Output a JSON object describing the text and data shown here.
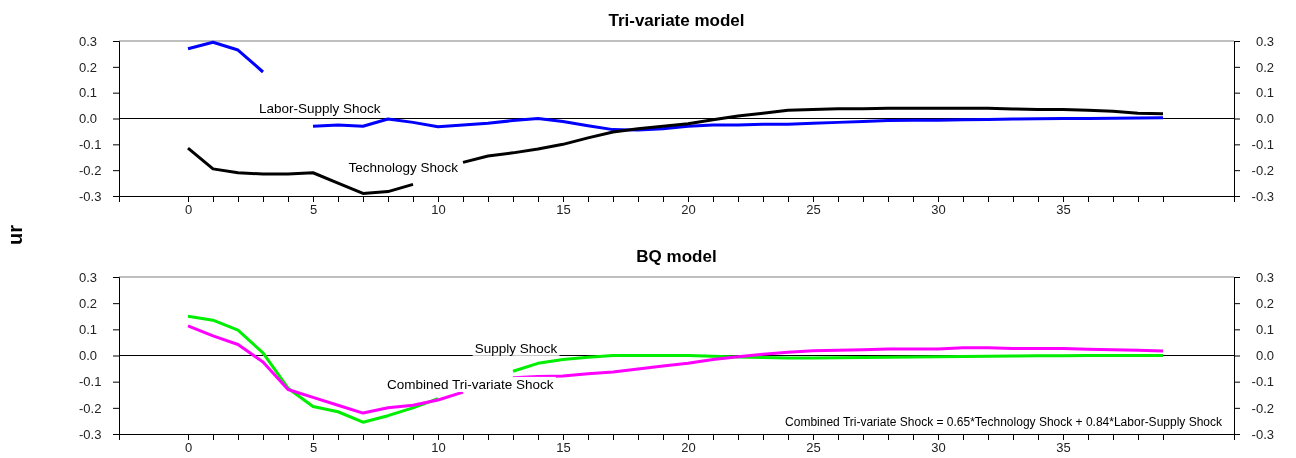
{
  "chart_data": [
    {
      "type": "line",
      "title": "Tri-variate model",
      "ylabel": "ur",
      "x": [
        0,
        1,
        2,
        3,
        4,
        5,
        6,
        7,
        8,
        9,
        10,
        11,
        12,
        13,
        14,
        15,
        16,
        17,
        18,
        19,
        20,
        21,
        22,
        23,
        24,
        25,
        26,
        27,
        28,
        29,
        30,
        31,
        32,
        33,
        34,
        35,
        36,
        37,
        38,
        39
      ],
      "series": [
        {
          "name": "Labor-Supply Shock",
          "color": "#0000ff",
          "values": [
            0.27,
            0.295,
            0.265,
            0.18,
            null,
            -0.03,
            -0.025,
            -0.03,
            -0.002,
            -0.015,
            -0.032,
            -0.025,
            -0.018,
            -0.008,
            0,
            -0.012,
            -0.028,
            -0.043,
            -0.045,
            -0.04,
            -0.03,
            -0.025,
            -0.025,
            -0.022,
            -0.022,
            -0.018,
            -0.015,
            -0.012,
            -0.008,
            -0.007,
            -0.007,
            -0.005,
            -0.004,
            -0.002,
            -0.001,
            0,
            0,
            0.001,
            0.002,
            0.003
          ]
        },
        {
          "name": "Technology Shock",
          "color": "#000000",
          "values": [
            -0.115,
            -0.195,
            -0.21,
            -0.215,
            -0.215,
            -0.21,
            -0.25,
            -0.29,
            -0.283,
            -0.255,
            null,
            -0.17,
            -0.145,
            -0.133,
            -0.118,
            -0.1,
            -0.075,
            -0.052,
            -0.04,
            -0.03,
            -0.02,
            -0.005,
            0.01,
            0.02,
            0.032,
            0.035,
            0.038,
            0.038,
            0.04,
            0.04,
            0.04,
            0.04,
            0.04,
            0.037,
            0.035,
            0.035,
            0.032,
            0.028,
            0.02,
            0.018
          ]
        }
      ],
      "xlim": [
        -2.76,
        41.84
      ],
      "xticks": [
        0,
        {
          "value": 1,
          "label": null
        },
        {
          "value": 2,
          "label": null
        },
        {
          "value": 3,
          "label": null
        },
        {
          "value": 4,
          "label": null
        },
        5,
        {
          "value": 6,
          "label": null
        },
        {
          "value": 7,
          "label": null
        },
        {
          "value": 8,
          "label": null
        },
        {
          "value": 9,
          "label": null
        },
        10,
        {
          "value": 11,
          "label": null
        },
        {
          "value": 12,
          "label": null
        },
        {
          "value": 13,
          "label": null
        },
        {
          "value": 14,
          "label": null
        },
        15,
        {
          "value": 16,
          "label": null
        },
        {
          "value": 17,
          "label": null
        },
        {
          "value": 18,
          "label": null
        },
        {
          "value": 19,
          "label": null
        },
        20,
        {
          "value": 21,
          "label": null
        },
        {
          "value": 22,
          "label": null
        },
        {
          "value": 23,
          "label": null
        },
        {
          "value": 24,
          "label": null
        },
        25,
        {
          "value": 26,
          "label": null
        },
        {
          "value": 27,
          "label": null
        },
        {
          "value": 28,
          "label": null
        },
        {
          "value": 29,
          "label": null
        },
        30,
        {
          "value": 31,
          "label": null
        },
        {
          "value": 32,
          "label": null
        },
        {
          "value": 33,
          "label": null
        },
        {
          "value": 34,
          "label": null
        },
        35,
        {
          "value": 36,
          "label": null
        },
        {
          "value": 37,
          "label": null
        },
        {
          "value": 38,
          "label": null
        },
        {
          "value": 39,
          "label": null
        }
      ],
      "ylim": [
        -0.3,
        0.3
      ],
      "yticks": [
        {
          "value": -0.3,
          "label": "-0.3"
        },
        {
          "value": -0.2,
          "label": "-0.2"
        },
        {
          "value": -0.1,
          "label": "-0.1"
        },
        {
          "value": 0,
          "label": "0.0"
        },
        {
          "value": 0.1,
          "label": "0.1"
        },
        {
          "value": 0.2,
          "label": "0.2"
        },
        {
          "value": 0.3,
          "label": "0.3"
        }
      ],
      "y2lim": [
        -0.3,
        0.3
      ],
      "y2ticks": [
        {
          "value": -0.3,
          "label": "-0.3"
        },
        {
          "value": -0.2,
          "label": "-0.2"
        },
        {
          "value": -0.1,
          "label": "-0.1"
        },
        {
          "value": 0,
          "label": "0.0"
        },
        {
          "value": 0.1,
          "label": "0.1"
        },
        {
          "value": 0.2,
          "label": "0.2"
        },
        {
          "value": 0.3,
          "label": "0.3"
        }
      ],
      "ref_lines": [
        {
          "axis": "y",
          "value": 0,
          "color": "#000000"
        }
      ],
      "grid": false
    },
    {
      "type": "line",
      "title": "BQ model",
      "x": [
        0,
        1,
        2,
        3,
        4,
        5,
        6,
        7,
        8,
        9,
        10,
        11,
        12,
        13,
        14,
        15,
        16,
        17,
        18,
        19,
        20,
        21,
        22,
        23,
        24,
        25,
        26,
        27,
        28,
        29,
        30,
        31,
        32,
        33,
        34,
        35,
        36,
        37,
        38,
        39
      ],
      "series": [
        {
          "name": "Supply Shock",
          "color": "#00ee00",
          "values": [
            0.15,
            0.135,
            0.097,
            0.01,
            -0.125,
            -0.195,
            -0.215,
            -0.255,
            -0.23,
            -0.2,
            -0.165,
            null,
            null,
            -0.06,
            -0.03,
            -0.015,
            -0.007,
            0,
            0,
            0,
            0,
            -0.003,
            -0.006,
            -0.008,
            -0.01,
            -0.01,
            -0.009,
            -0.008,
            -0.007,
            -0.006,
            -0.005,
            -0.004,
            -0.003,
            -0.002,
            -0.001,
            -0.001,
            0,
            0,
            0,
            0
          ]
        },
        {
          "name": "Combined Tri-variate Shock",
          "color": "#ff00ff",
          "values": [
            0.113,
            0.075,
            0.042,
            -0.025,
            -0.13,
            -0.16,
            -0.19,
            -0.22,
            -0.2,
            -0.19,
            -0.17,
            -0.14,
            null,
            -0.085,
            -0.08,
            -0.078,
            -0.07,
            -0.063,
            -0.052,
            -0.04,
            -0.03,
            -0.015,
            -0.005,
            0.005,
            0.012,
            0.018,
            0.02,
            0.022,
            0.025,
            0.025,
            0.025,
            0.03,
            0.03,
            0.027,
            0.027,
            0.027,
            0.024,
            0.022,
            0.02,
            0.017
          ]
        }
      ],
      "annotations": [
        "Combined Tri-variate Shock =  0.65*Technology Shock + 0.84*Labor-Supply Shock"
      ],
      "xlim": [
        -2.76,
        41.84
      ],
      "xticks": [
        0,
        {
          "value": 1,
          "label": null
        },
        {
          "value": 2,
          "label": null
        },
        {
          "value": 3,
          "label": null
        },
        {
          "value": 4,
          "label": null
        },
        5,
        {
          "value": 6,
          "label": null
        },
        {
          "value": 7,
          "label": null
        },
        {
          "value": 8,
          "label": null
        },
        {
          "value": 9,
          "label": null
        },
        10,
        {
          "value": 11,
          "label": null
        },
        {
          "value": 12,
          "label": null
        },
        {
          "value": 13,
          "label": null
        },
        {
          "value": 14,
          "label": null
        },
        15,
        {
          "value": 16,
          "label": null
        },
        {
          "value": 17,
          "label": null
        },
        {
          "value": 18,
          "label": null
        },
        {
          "value": 19,
          "label": null
        },
        20,
        {
          "value": 21,
          "label": null
        },
        {
          "value": 22,
          "label": null
        },
        {
          "value": 23,
          "label": null
        },
        {
          "value": 24,
          "label": null
        },
        25,
        {
          "value": 26,
          "label": null
        },
        {
          "value": 27,
          "label": null
        },
        {
          "value": 28,
          "label": null
        },
        {
          "value": 29,
          "label": null
        },
        30,
        {
          "value": 31,
          "label": null
        },
        {
          "value": 32,
          "label": null
        },
        {
          "value": 33,
          "label": null
        },
        {
          "value": 34,
          "label": null
        },
        35,
        {
          "value": 36,
          "label": null
        },
        {
          "value": 37,
          "label": null
        },
        {
          "value": 38,
          "label": null
        },
        {
          "value": 39,
          "label": null
        }
      ],
      "ylim": [
        -0.3,
        0.3
      ],
      "yticks": [
        {
          "value": -0.3,
          "label": "-0.3"
        },
        {
          "value": -0.2,
          "label": "-0.2"
        },
        {
          "value": -0.1,
          "label": "-0.1"
        },
        {
          "value": 0,
          "label": "0.0"
        },
        {
          "value": 0.1,
          "label": "0.1"
        },
        {
          "value": 0.2,
          "label": "0.2"
        },
        {
          "value": 0.3,
          "label": "0.3"
        }
      ],
      "y2lim": [
        -0.3,
        0.3
      ],
      "y2ticks": [
        {
          "value": -0.3,
          "label": "-0.3"
        },
        {
          "value": -0.2,
          "label": "-0.2"
        },
        {
          "value": -0.1,
          "label": "-0.1"
        },
        {
          "value": 0,
          "label": "0.0"
        },
        {
          "value": 0.1,
          "label": "0.1"
        },
        {
          "value": 0.2,
          "label": "0.2"
        },
        {
          "value": 0.3,
          "label": "0.3"
        }
      ],
      "ref_lines": [
        {
          "axis": "y",
          "value": 0,
          "color": "#000000"
        }
      ],
      "grid": false
    }
  ]
}
